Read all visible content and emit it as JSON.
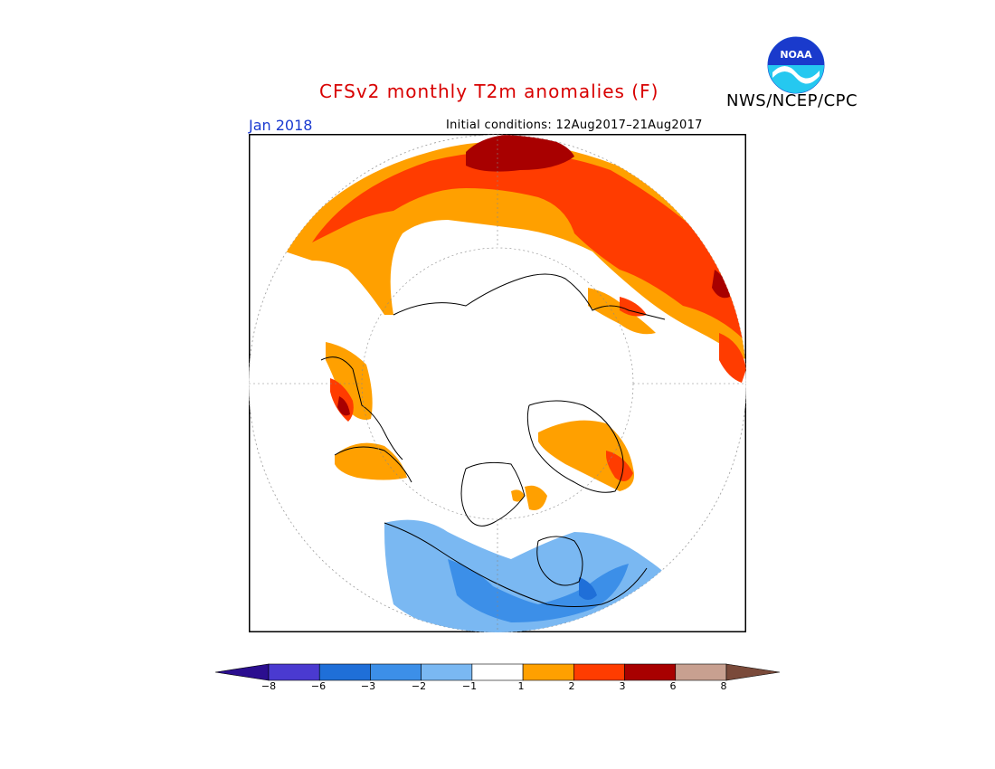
{
  "header": {
    "title": "CFSv2 monthly T2m anomalies (F)",
    "agency": "NWS/NCEP/CPC",
    "logo_text": "NOAA",
    "month": "Jan 2018",
    "initial_conditions": "Initial conditions: 12Aug2017–21Aug2017"
  },
  "legend": {
    "colors": [
      "#2b0e8f",
      "#4a3ad0",
      "#1f6fd8",
      "#3c8fe8",
      "#7ab8f2",
      "#ffffff",
      "#ffa000",
      "#ff3c00",
      "#a80000",
      "#c8a090",
      "#7a4a3a"
    ],
    "ticks": [
      "−8",
      "−6",
      "−3",
      "−2",
      "−1",
      "1",
      "2",
      "3",
      "6",
      "8"
    ]
  },
  "colors": {
    "orange": "#ffa000",
    "red_orange": "#ff3c00",
    "dark_red": "#a80000",
    "light_blue": "#7ab8f2",
    "mid_blue": "#3c8fe8",
    "blue": "#1f6fd8"
  }
}
